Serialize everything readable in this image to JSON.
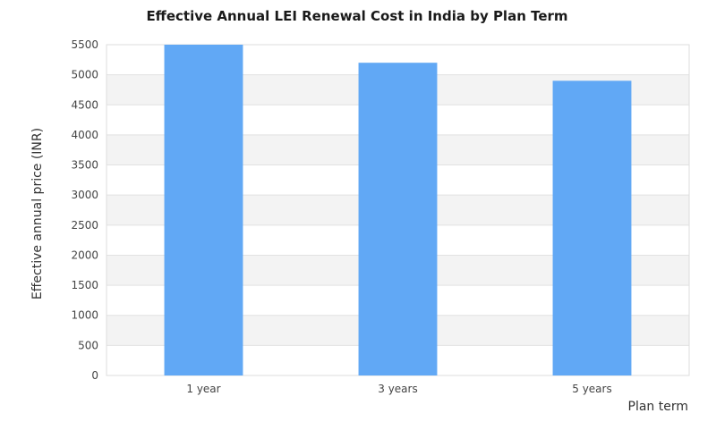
{
  "chart_data": {
    "type": "bar",
    "title": "Effective Annual LEI Renewal Cost in India by Plan Term",
    "xlabel": "Plan term",
    "ylabel": "Effective annual price (INR)",
    "categories": [
      "1 year",
      "3 years",
      "5 years"
    ],
    "values": [
      5500,
      5200,
      4900
    ],
    "ylim": [
      0,
      5500
    ],
    "yticks": [
      "0",
      "500",
      "1000",
      "1500",
      "2000",
      "2500",
      "3000",
      "3500",
      "4000",
      "4500",
      "5000",
      "5500"
    ],
    "grid": "horizontal bands",
    "legend": "none",
    "colors": {
      "bar": "#61a8f5",
      "band": "#f3f3f3",
      "gridline": "#e2e2e2",
      "frame": "#dddddd"
    }
  }
}
